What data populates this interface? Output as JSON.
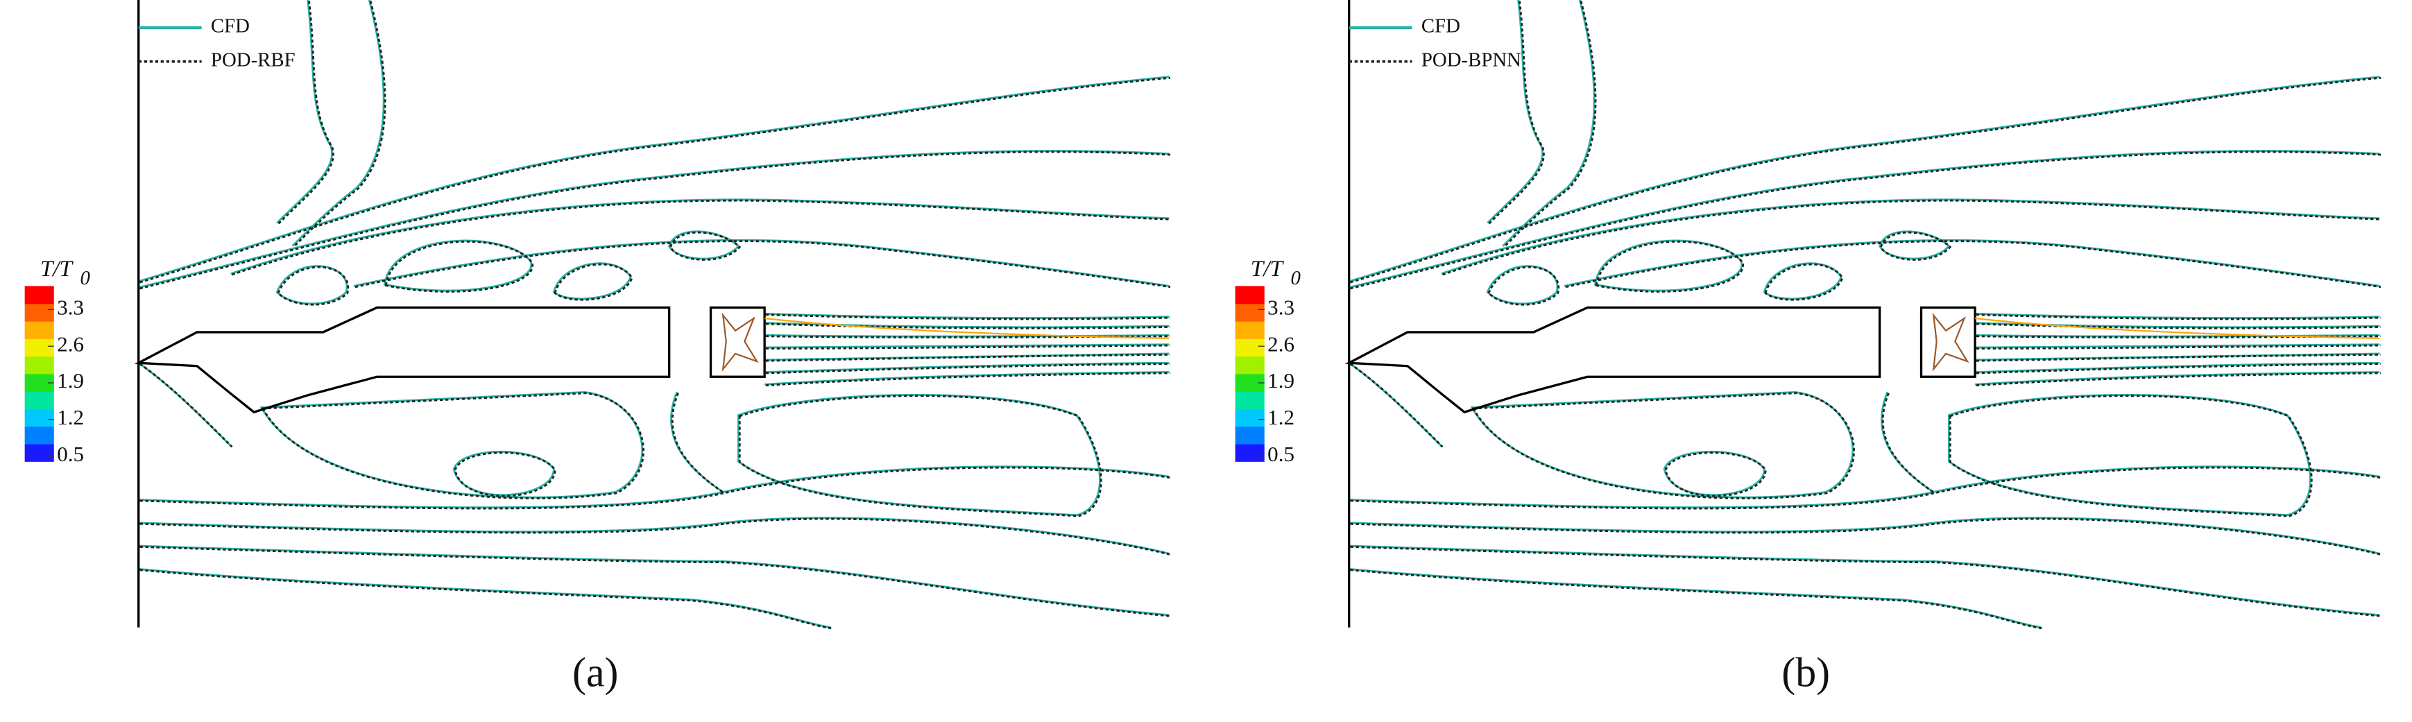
{
  "chart_data": [
    {
      "type": "contour",
      "panel_label": "(a)",
      "colorbar": {
        "title": "T/T",
        "title_sub": "0",
        "ticks": [
          0.5,
          1.2,
          1.9,
          2.6,
          3.3
        ],
        "lim": [
          0.4,
          3.75
        ],
        "colors": [
          "#1a1aff",
          "#0080ff",
          "#00c8ff",
          "#00e6a0",
          "#20e020",
          "#a0f000",
          "#f0f000",
          "#ffb000",
          "#ff6000",
          "#ff0000"
        ]
      },
      "series": [
        {
          "name": "CFD",
          "color": "#27b3a3"
        },
        {
          "name": "POD-RBF",
          "color": "#222222"
        }
      ]
    },
    {
      "type": "contour",
      "panel_label": "(b)",
      "colorbar": {
        "title": "T/T",
        "title_sub": "0",
        "ticks": [
          0.5,
          1.2,
          1.9,
          2.6,
          3.3
        ],
        "lim": [
          0.4,
          3.75
        ],
        "colors": [
          "#1a1aff",
          "#0080ff",
          "#00c8ff",
          "#00e6a0",
          "#20e020",
          "#a0f000",
          "#f0f000",
          "#ffb000",
          "#ff6000",
          "#ff0000"
        ]
      },
      "series": [
        {
          "name": "CFD",
          "color": "#27b3a3"
        },
        {
          "name": "POD-BPNN",
          "color": "#222222"
        }
      ]
    }
  ]
}
